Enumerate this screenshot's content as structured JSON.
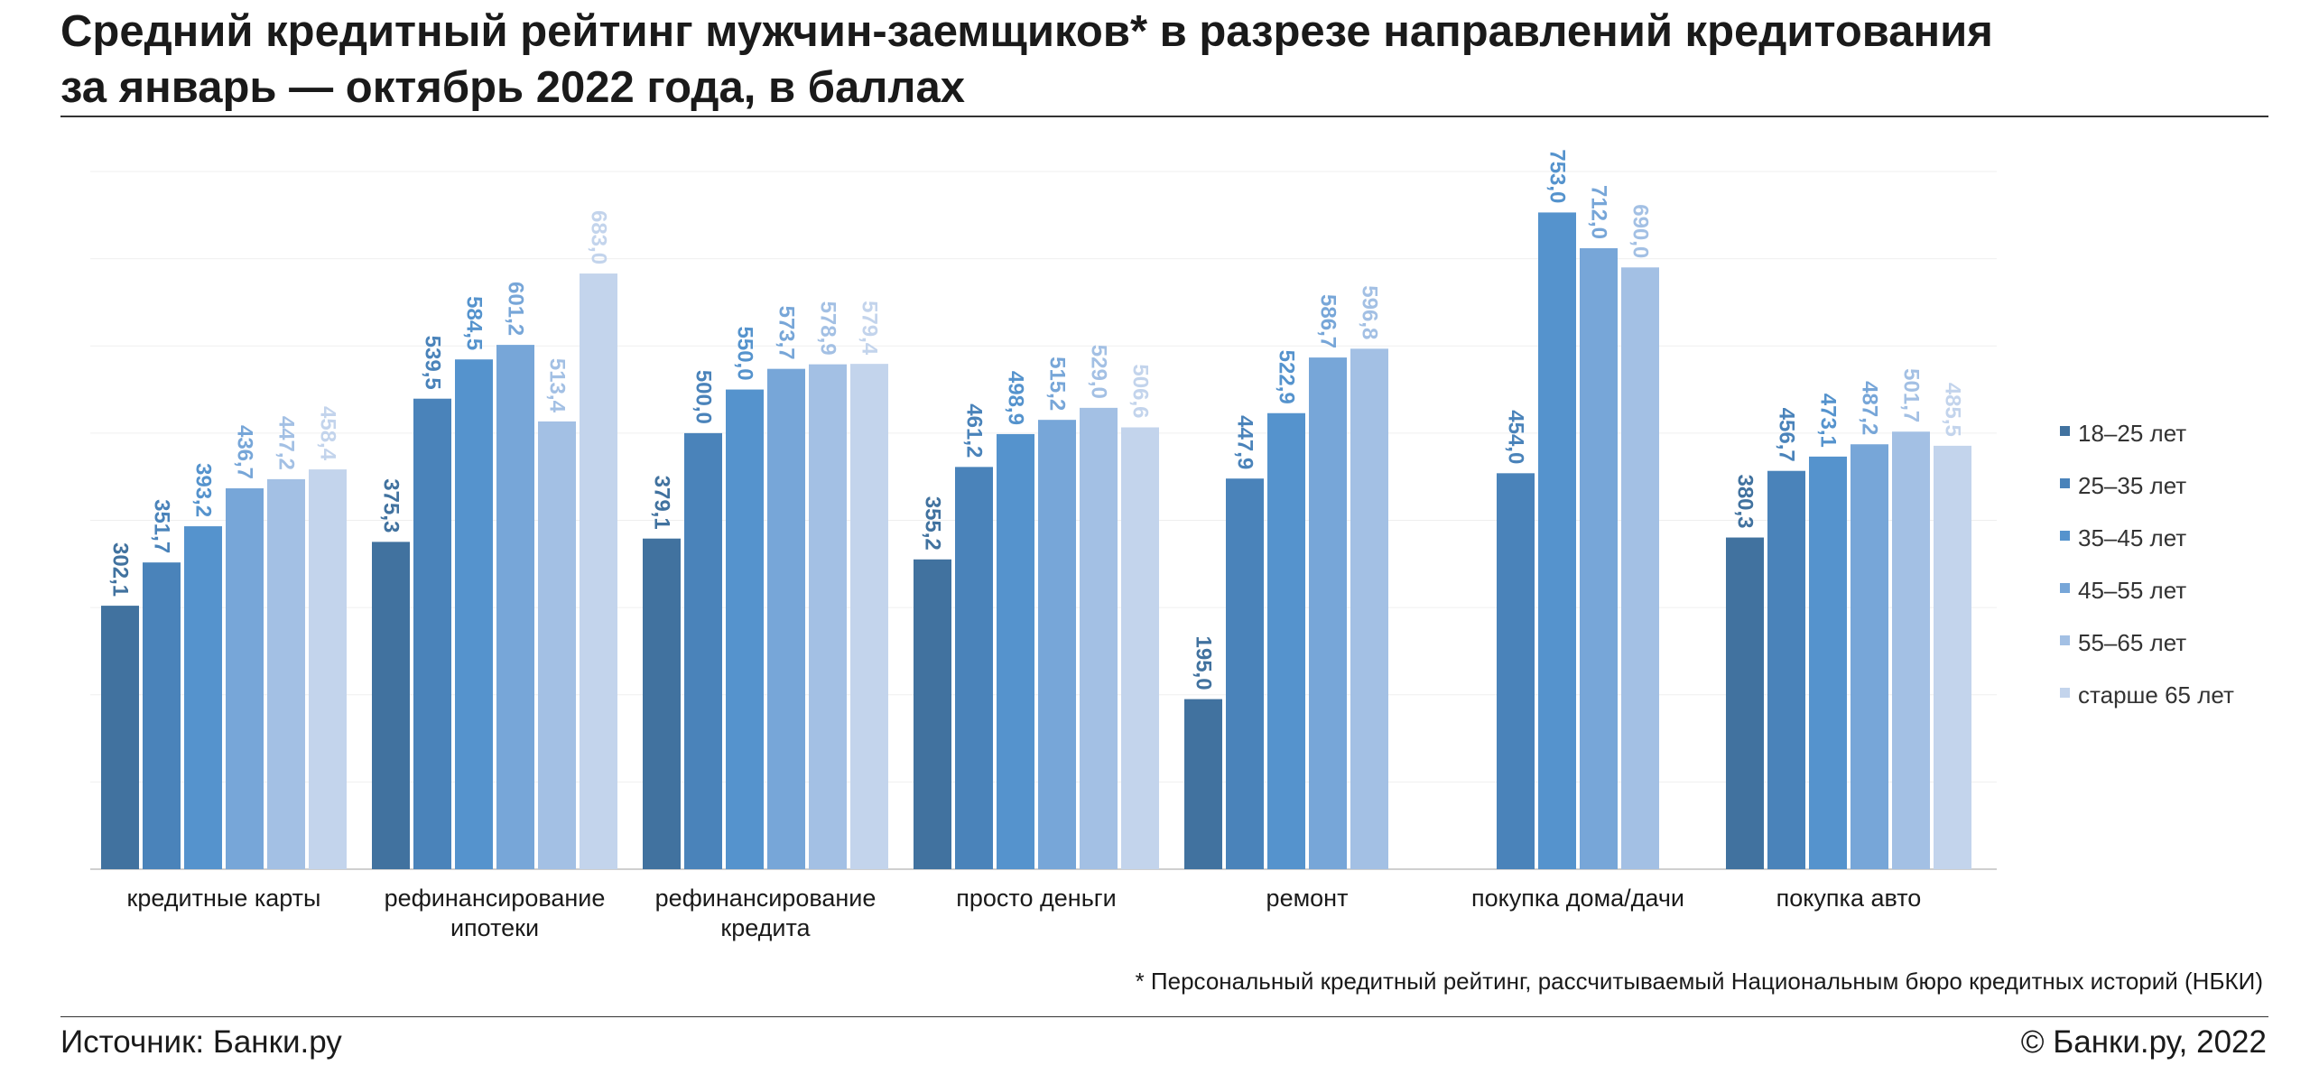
{
  "title": {
    "line1": "Средний кредитный рейтинг мужчин-заемщиков* в разрезе направлений кредитования",
    "line2": "за январь — октябрь 2022 года, в баллах"
  },
  "footnote": "* Персональный кредитный рейтинг, рассчитываемый Национальным бюро кредитных историй (НБКИ)",
  "source": "Источник: Банки.ру",
  "copyright": "© Банки.ру, 2022",
  "chart_data": {
    "type": "bar",
    "ylim": [
      0,
      800
    ],
    "grid": true,
    "legend_position": "right",
    "categories": [
      [
        "кредитные карты"
      ],
      [
        "рефинансирование",
        "ипотеки"
      ],
      [
        "рефинансирование",
        "кредита"
      ],
      [
        "просто деньги"
      ],
      [
        "ремонт"
      ],
      [
        "покупка дома/дачи"
      ],
      [
        "покупка авто"
      ]
    ],
    "series": [
      {
        "name": "18–25 лет",
        "color": "#41729f",
        "values": [
          302.1,
          375.3,
          379.1,
          355.2,
          195.0,
          null,
          380.3
        ]
      },
      {
        "name": "25–35 лет",
        "color": "#4a83ba",
        "values": [
          351.7,
          539.5,
          500.0,
          461.2,
          447.9,
          454.0,
          456.7
        ]
      },
      {
        "name": "35–45 лет",
        "color": "#5593cd",
        "values": [
          393.2,
          584.5,
          550.0,
          498.9,
          522.9,
          753.0,
          473.1
        ]
      },
      {
        "name": "45–55 лет",
        "color": "#77a6d8",
        "values": [
          436.7,
          601.2,
          573.7,
          515.2,
          586.7,
          712.0,
          487.2
        ]
      },
      {
        "name": "55–65 лет",
        "color": "#a3c0e4",
        "values": [
          447.2,
          513.4,
          578.9,
          529.0,
          596.8,
          690.0,
          501.7
        ]
      },
      {
        "name": "старше 65 лет",
        "color": "#c3d4ec",
        "values": [
          458.4,
          683.0,
          579.4,
          506.6,
          null,
          null,
          485.5
        ]
      }
    ]
  }
}
